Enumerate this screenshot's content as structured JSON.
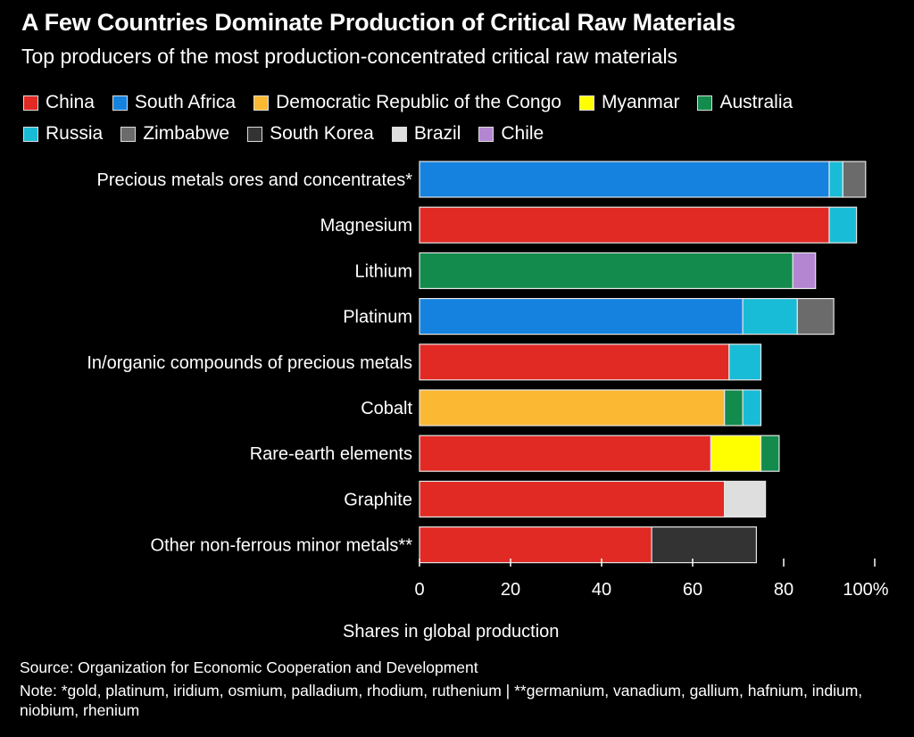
{
  "chart_data": {
    "type": "bar",
    "orientation": "horizontal",
    "stacked": true,
    "title": "A Few Countries Dominate Production of Critical Raw Materials",
    "subtitle": "Top producers of the most production-concentrated critical raw materials",
    "xlabel": "Shares in global production",
    "ylabel": "",
    "xlim": [
      0,
      100
    ],
    "xticks": [
      "0",
      "20",
      "40",
      "60",
      "80",
      "100%"
    ],
    "legend_placement": "top",
    "legend": [
      {
        "name": "China",
        "color": "#e12a24"
      },
      {
        "name": "South Africa",
        "color": "#1582e0"
      },
      {
        "name": "Democratic Republic of the Congo",
        "color": "#fbb833"
      },
      {
        "name": "Myanmar",
        "color": "#ffff00"
      },
      {
        "name": "Australia",
        "color": "#138b4c"
      },
      {
        "name": "Russia",
        "color": "#19bcd6"
      },
      {
        "name": "Zimbabwe",
        "color": "#6b6b6b"
      },
      {
        "name": "South Korea",
        "color": "#333333"
      },
      {
        "name": "Brazil",
        "color": "#dedede"
      },
      {
        "name": "Chile",
        "color": "#b486d2"
      }
    ],
    "categories": [
      "Precious metals ores and concentrates*",
      "Magnesium",
      "Lithium",
      "Platinum",
      "In/organic compounds of precious metals",
      "Cobalt",
      "Rare-earth elements",
      "Graphite",
      "Other non-ferrous minor metals**"
    ],
    "bars": [
      [
        {
          "series": "South Africa",
          "value": 90
        },
        {
          "series": "Russia",
          "value": 3
        },
        {
          "series": "Zimbabwe",
          "value": 5
        }
      ],
      [
        {
          "series": "China",
          "value": 90
        },
        {
          "series": "Russia",
          "value": 6
        }
      ],
      [
        {
          "series": "Australia",
          "value": 82
        },
        {
          "series": "Chile",
          "value": 5
        }
      ],
      [
        {
          "series": "South Africa",
          "value": 71
        },
        {
          "series": "Russia",
          "value": 12
        },
        {
          "series": "Zimbabwe",
          "value": 8
        }
      ],
      [
        {
          "series": "China",
          "value": 68
        },
        {
          "series": "Russia",
          "value": 7
        }
      ],
      [
        {
          "series": "Democratic Republic of the Congo",
          "value": 67
        },
        {
          "series": "Australia",
          "value": 4
        },
        {
          "series": "Russia",
          "value": 4
        }
      ],
      [
        {
          "series": "China",
          "value": 64
        },
        {
          "series": "Myanmar",
          "value": 11
        },
        {
          "series": "Australia",
          "value": 4
        }
      ],
      [
        {
          "series": "China",
          "value": 67
        },
        {
          "series": "Brazil",
          "value": 9
        }
      ],
      [
        {
          "series": "China",
          "value": 51
        },
        {
          "series": "South Korea",
          "value": 23
        }
      ]
    ]
  },
  "footer": {
    "source": "Source: Organization for Economic Cooperation and Development",
    "note": "Note: *gold, platinum, iridium, osmium, palladium, rhodium, ruthenium | **germanium, vanadium, gallium, hafnium, indium, niobium, rhenium"
  }
}
